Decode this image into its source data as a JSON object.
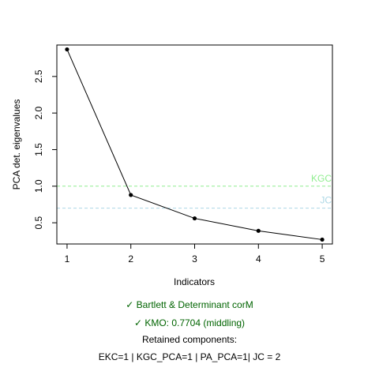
{
  "chart_data": {
    "type": "line",
    "x": [
      1,
      2,
      3,
      4,
      5
    ],
    "values": [
      2.87,
      0.88,
      0.56,
      0.39,
      0.27
    ],
    "xlabel": "Indicators",
    "ylabel": "PCA det. eigenvalues",
    "xlim": [
      0.84,
      5.16
    ],
    "ylim": [
      0.21,
      2.93
    ],
    "x_ticks": [
      "1",
      "2",
      "3",
      "4",
      "5"
    ],
    "y_ticks": [
      "0.5",
      "1.0",
      "1.5",
      "2.0",
      "2.5"
    ],
    "y_tick_values": [
      0.5,
      1.0,
      1.5,
      2.0,
      2.5
    ],
    "grid": false,
    "reference_lines": [
      {
        "label": "KGC",
        "value": 1.0,
        "color": "#90ee90"
      },
      {
        "label": "JC",
        "value": 0.7,
        "color": "#add8e6"
      }
    ]
  },
  "notes": {
    "bartlett": "✓ Bartlett & Determinant corM",
    "kmo": "✓ KMO: 0.7704 (middling)",
    "retained_title": "Retained components:",
    "retained_values": "EKC=1 | KGC_PCA=1 | PA_PCA=1| JC = 2",
    "ok_color": "#006400",
    "text_color": "#000000"
  }
}
